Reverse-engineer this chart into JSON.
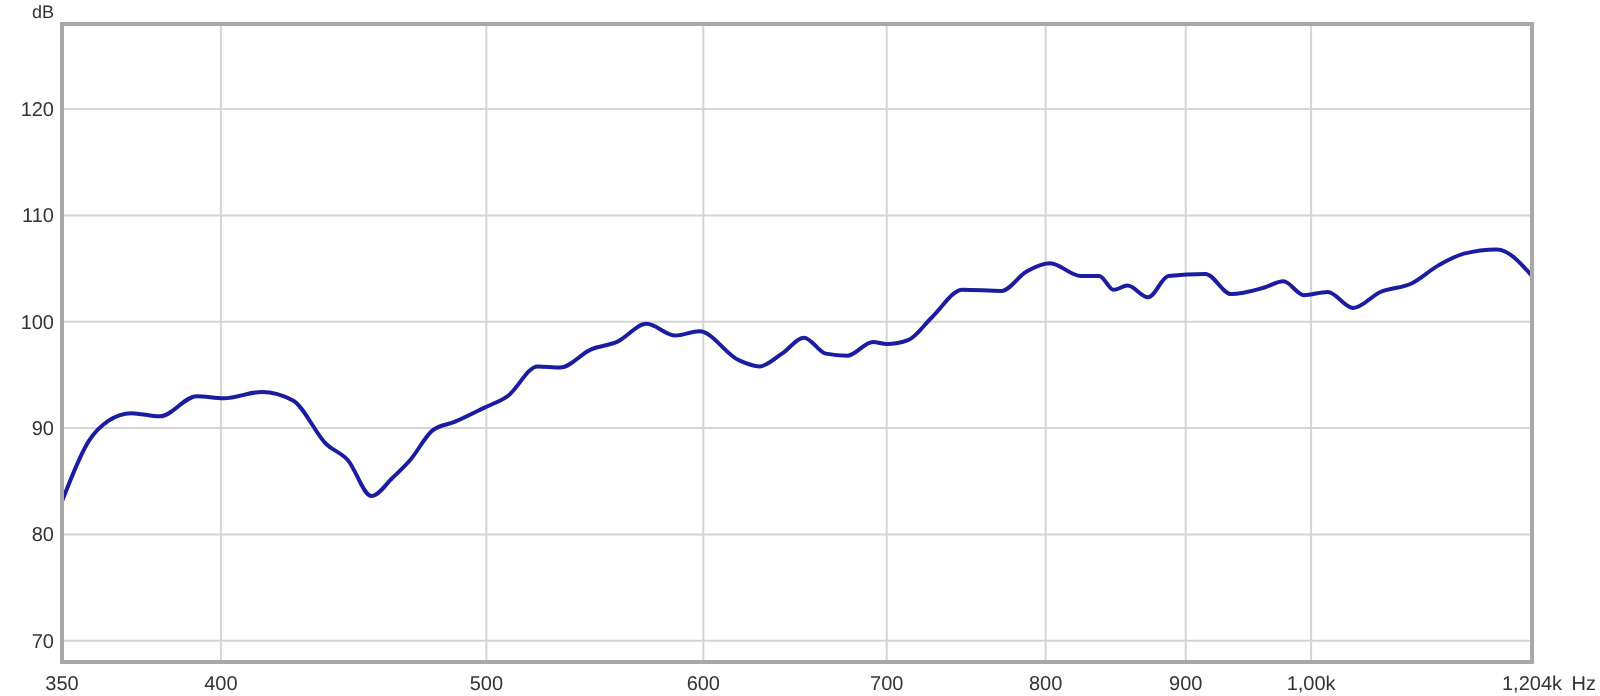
{
  "chart_data": {
    "type": "line",
    "ylabel": "dB",
    "xlabel": "Hz",
    "log": "x",
    "grid": true,
    "line_style": "solid",
    "xlim": [
      350,
      1204
    ],
    "ylim": [
      68,
      128
    ],
    "xticks": [
      350,
      400,
      500,
      600,
      700,
      800,
      900,
      {
        "value": 1000,
        "label": "1,00k"
      },
      {
        "value": 1204,
        "label": "1,204k"
      }
    ],
    "yticks": [
      70,
      80,
      90,
      100,
      110,
      120
    ],
    "x": [
      350,
      358,
      364,
      371,
      380,
      392,
      401,
      414,
      425,
      437,
      445,
      454,
      462,
      469,
      478,
      487,
      499,
      509,
      522,
      532,
      546,
      558,
      572,
      586,
      598,
      618,
      629,
      641,
      653,
      665,
      677,
      692,
      700,
      713,
      727,
      746,
      771,
      787,
      803,
      824,
      837,
      847,
      857,
      872,
      887,
      915,
      935,
      961,
      977,
      994,
      1014,
      1036,
      1060,
      1088,
      1113,
      1137,
      1169,
      1204
    ],
    "series": [
      {
        "color": "#1c1ca0",
        "values": [
          83.1,
          88.8,
          90.7,
          91.4,
          91.1,
          93.0,
          92.8,
          93.4,
          92.6,
          88.5,
          87.0,
          83.6,
          85.3,
          87.0,
          89.8,
          90.6,
          91.9,
          93.0,
          95.8,
          95.7,
          97.4,
          98.1,
          99.8,
          98.7,
          99.1,
          96.4,
          95.8,
          97.0,
          98.5,
          97.0,
          96.8,
          98.1,
          97.9,
          98.3,
          100.4,
          103.0,
          102.9,
          104.7,
          105.5,
          104.3,
          104.3,
          103.0,
          103.4,
          102.3,
          104.3,
          104.5,
          102.6,
          103.2,
          103.8,
          102.5,
          102.8,
          101.3,
          102.8,
          103.6,
          105.3,
          106.4,
          106.8,
          104.3
        ]
      }
    ]
  }
}
